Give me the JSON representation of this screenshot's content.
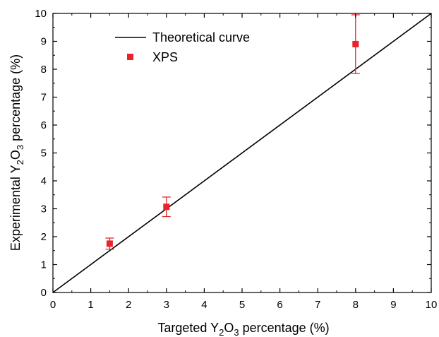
{
  "chart_data": {
    "type": "scatter",
    "xlabel": {
      "prefix": "Targeted Y",
      "sub1": "2",
      "mid": "O",
      "sub2": "3",
      "suffix": " percentage (%)"
    },
    "ylabel": {
      "prefix": "Experimental Y",
      "sub1": "2",
      "mid": "O",
      "sub2": "3",
      "suffix": " percentage (%)"
    },
    "xlim": [
      0,
      10
    ],
    "ylim": [
      0,
      10
    ],
    "x_ticks": [
      "0",
      "1",
      "2",
      "3",
      "4",
      "5",
      "6",
      "7",
      "8",
      "9",
      "10"
    ],
    "y_ticks": [
      "0",
      "1",
      "2",
      "3",
      "4",
      "5",
      "6",
      "7",
      "8",
      "9",
      "10"
    ],
    "grid": false,
    "legend_position": "top-left",
    "series": [
      {
        "name": "Theoretical curve",
        "kind": "line",
        "color": "#000000",
        "x": [
          0,
          10
        ],
        "y": [
          0,
          10
        ]
      },
      {
        "name": "XPS",
        "kind": "scatter",
        "marker": "square",
        "color": "#e8242a",
        "x": [
          1.5,
          3,
          8
        ],
        "y": [
          1.75,
          3.07,
          8.9
        ],
        "y_err_low": [
          1.55,
          2.72,
          7.85
        ],
        "y_err_high": [
          1.95,
          3.42,
          9.95
        ]
      }
    ]
  }
}
